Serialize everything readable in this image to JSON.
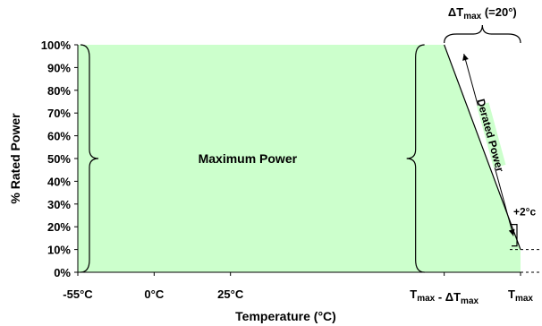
{
  "chart_data": {
    "type": "area",
    "title": "",
    "xlabel": "Temperature (°C)",
    "ylabel": "% Rated Power",
    "ylim": [
      0,
      100
    ],
    "y_ticks": [
      "0%",
      "10%",
      "20%",
      "30%",
      "40%",
      "50%",
      "60%",
      "70%",
      "80%",
      "90%",
      "100%"
    ],
    "y_tick_values": [
      0,
      10,
      20,
      30,
      40,
      50,
      60,
      70,
      80,
      90,
      100
    ],
    "x_ticks": [
      {
        "label": "-55°C",
        "pos": 0
      },
      {
        "label": "0°C",
        "pos": 1
      },
      {
        "label": "25°C",
        "pos": 2
      },
      {
        "label": "Tmax - ΔTmax",
        "pos": 4.8
      },
      {
        "label": "Tmax",
        "pos": 5.8
      }
    ],
    "xlim": [
      0,
      5.8
    ],
    "grid": "vertical",
    "fill_color": "#ccffcc",
    "series": [
      {
        "x": [
          0,
          4.8,
          5.8
        ],
        "y": [
          100,
          100,
          10
        ]
      }
    ],
    "regions": [
      {
        "label": "Maximum Power",
        "x": [
          0,
          4.8
        ]
      },
      {
        "label": "Derated Power",
        "x": [
          4.8,
          5.8
        ]
      }
    ],
    "annotations": {
      "delta_top": "ΔTmax (=20°)",
      "plus_two": "+2°c",
      "min_power_level": 10
    }
  }
}
